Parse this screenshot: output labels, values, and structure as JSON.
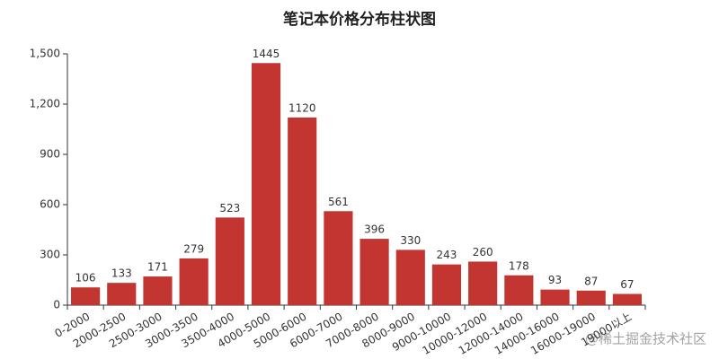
{
  "chart_data": {
    "type": "bar",
    "title": "笔记本价格分布柱状图",
    "categories": [
      "0-2000",
      "2000-2500",
      "2500-3000",
      "3000-3500",
      "3500-4000",
      "4000-5000",
      "5000-6000",
      "6000-7000",
      "7000-8000",
      "8000-9000",
      "9000-10000",
      "10000-12000",
      "12000-14000",
      "14000-16000",
      "16000-19000",
      "19000以上"
    ],
    "values": [
      106,
      133,
      171,
      279,
      523,
      1445,
      1120,
      561,
      396,
      330,
      243,
      260,
      178,
      93,
      87,
      67
    ],
    "color": "#c23531",
    "ylim": [
      0,
      1500
    ],
    "yticks": [
      0,
      300,
      600,
      900,
      {
        "value": 1200,
        "label": "1,200"
      },
      {
        "value": 1500,
        "label": "1,500"
      }
    ],
    "grid": false,
    "watermark": "@稀土掘金技术社区"
  }
}
